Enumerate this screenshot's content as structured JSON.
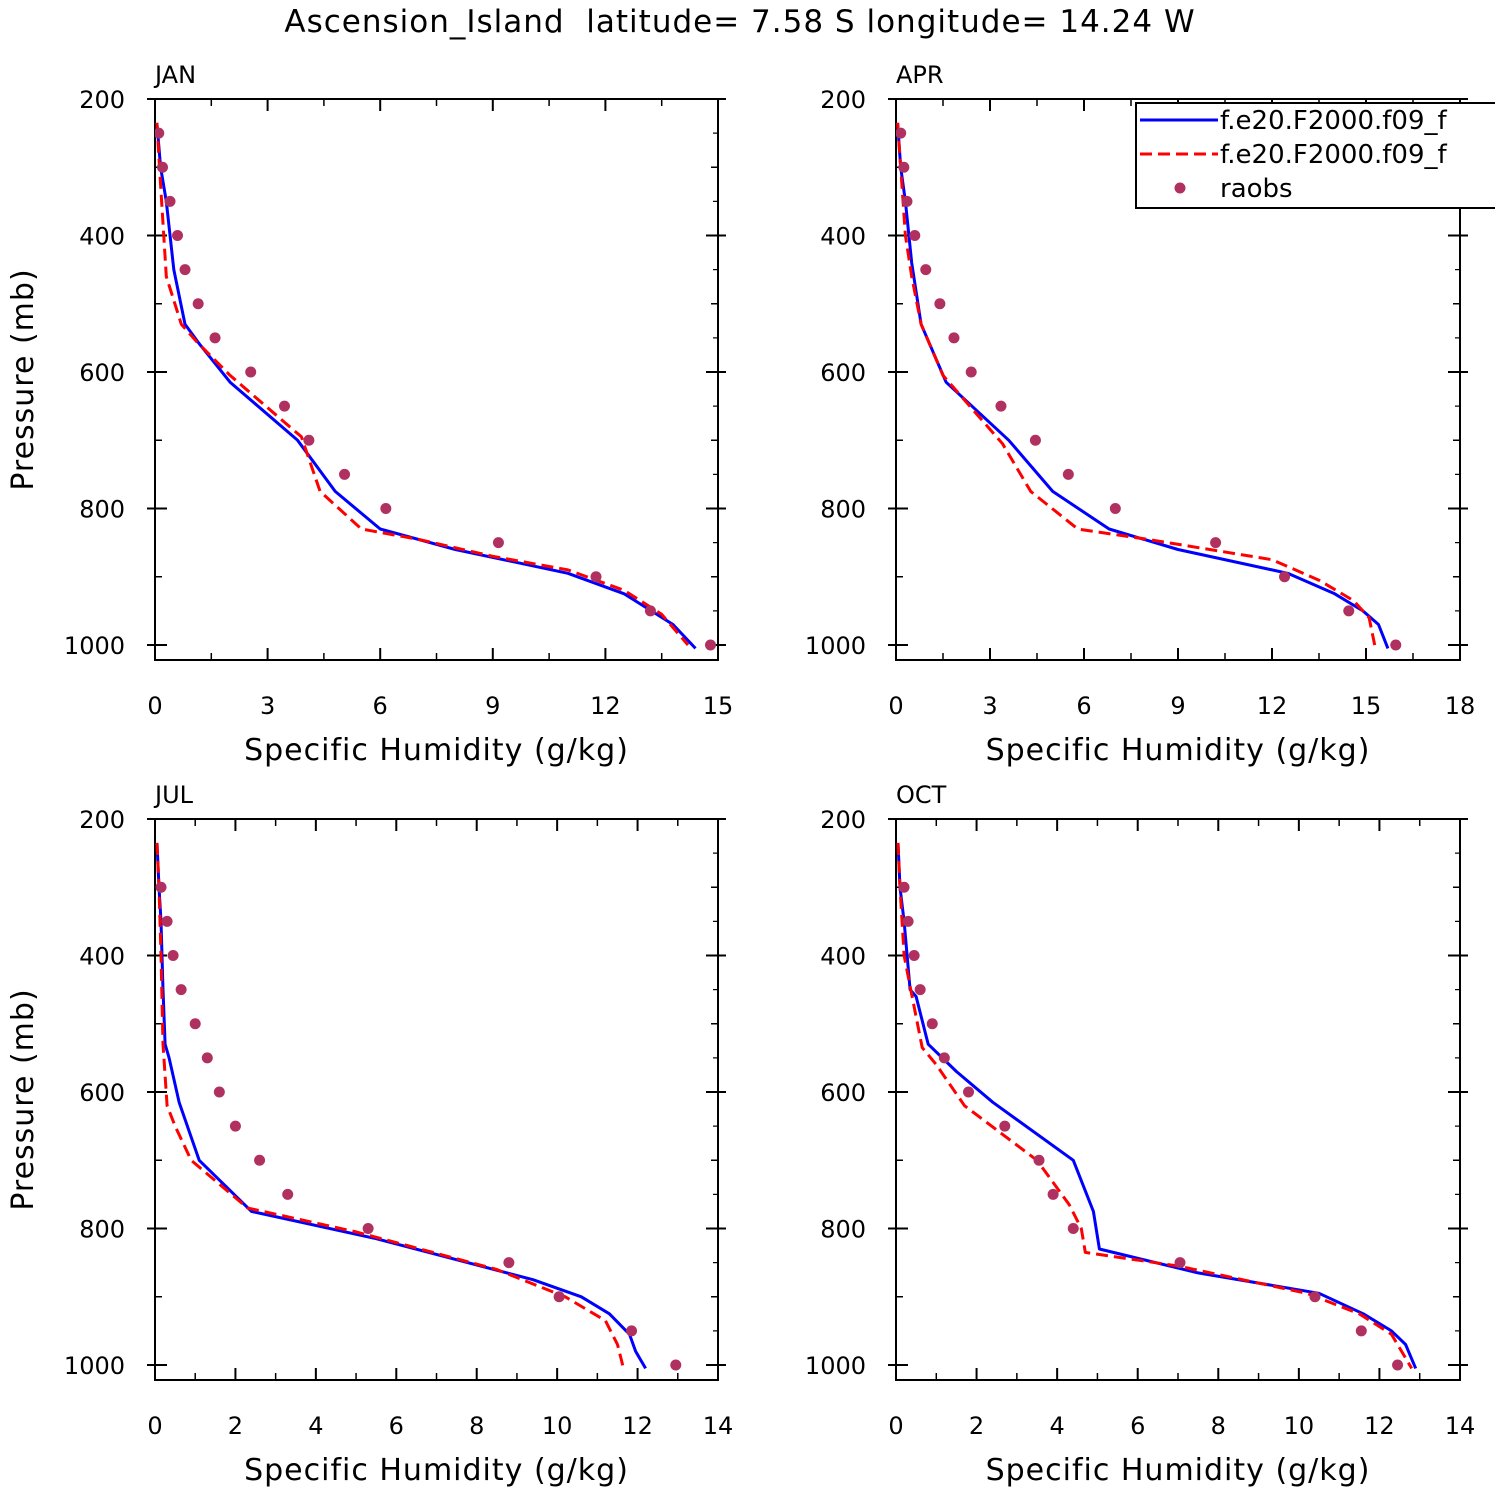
{
  "figure_title": "Ascension_Island  latitude= 7.58 S longitude= 14.24 W",
  "legend": {
    "entries": [
      {
        "label": "f.e20.F2000.f09_f",
        "style": "solid",
        "color": "#0000ff"
      },
      {
        "label": "f.e20.F2000.f09_f",
        "style": "dashed",
        "color": "#ff0000"
      },
      {
        "label": "raobs",
        "style": "marker",
        "color": "#b03060"
      }
    ]
  },
  "colors": {
    "series_solid": "#0000ff",
    "series_dashed": "#ff0000",
    "obs": "#b03060"
  },
  "chart_data": [
    {
      "type": "line",
      "title": "JAN",
      "xlabel": "Specific Humidity (g/kg)",
      "ylabel": "Pressure (mb)",
      "xlim": [
        0,
        15
      ],
      "xticks": [
        0,
        3,
        6,
        9,
        12,
        15
      ],
      "ylim": [
        1000,
        200
      ],
      "yticks": [
        200,
        400,
        600,
        800,
        1000
      ],
      "series": [
        {
          "style": "solid",
          "x": [
            0.05,
            0.15,
            0.3,
            0.5,
            0.8,
            1.2,
            2.0,
            3.8,
            4.8,
            6.0,
            8.0,
            11.0,
            12.5,
            13.8,
            14.4
          ],
          "y": [
            235,
            300,
            350,
            450,
            530,
            560,
            615,
            700,
            775,
            830,
            860,
            895,
            925,
            970,
            1005
          ]
        },
        {
          "style": "dashed",
          "x": [
            0.05,
            0.12,
            0.3,
            0.7,
            1.1,
            2.0,
            3.9,
            4.4,
            5.5,
            7.0,
            9.0,
            11.0,
            12.5,
            13.5,
            14.2
          ],
          "y": [
            235,
            300,
            460,
            530,
            555,
            605,
            695,
            775,
            830,
            845,
            870,
            890,
            920,
            955,
            1000
          ]
        },
        {
          "style": "marker",
          "x": [
            0.1,
            0.2,
            0.4,
            0.6,
            0.8,
            1.15,
            1.6,
            2.55,
            3.45,
            4.1,
            5.05,
            6.15,
            9.15,
            11.75,
            13.2,
            14.8
          ],
          "y": [
            250,
            300,
            350,
            400,
            450,
            500,
            550,
            600,
            650,
            700,
            750,
            800,
            850,
            900,
            950,
            1000
          ]
        }
      ]
    },
    {
      "type": "line",
      "title": "APR",
      "xlabel": "Specific Humidity (g/kg)",
      "ylabel": "",
      "xlim": [
        0,
        18
      ],
      "xticks": [
        0,
        3,
        6,
        9,
        12,
        15,
        18
      ],
      "ylim": [
        1000,
        200
      ],
      "yticks": [
        200,
        400,
        600,
        800,
        1000
      ],
      "series": [
        {
          "style": "solid",
          "x": [
            0.05,
            0.15,
            0.3,
            0.5,
            0.8,
            1.6,
            3.6,
            5.0,
            6.8,
            9.0,
            12.5,
            14.0,
            14.9,
            15.4,
            15.7
          ],
          "y": [
            235,
            300,
            350,
            440,
            530,
            615,
            700,
            775,
            830,
            860,
            895,
            925,
            950,
            970,
            1005
          ]
        },
        {
          "style": "dashed",
          "x": [
            0.05,
            0.15,
            0.3,
            0.5,
            0.8,
            1.5,
            3.4,
            4.3,
            5.8,
            8.0,
            12.0,
            13.5,
            14.6,
            15.1,
            15.3
          ],
          "y": [
            235,
            300,
            400,
            460,
            530,
            605,
            705,
            775,
            830,
            845,
            875,
            905,
            935,
            960,
            1005
          ]
        },
        {
          "style": "marker",
          "x": [
            0.15,
            0.25,
            0.35,
            0.6,
            0.95,
            1.4,
            1.85,
            2.4,
            3.35,
            4.45,
            5.5,
            7.0,
            10.2,
            12.4,
            14.45,
            15.95
          ],
          "y": [
            250,
            300,
            350,
            400,
            450,
            500,
            550,
            600,
            650,
            700,
            750,
            800,
            850,
            900,
            950,
            1000
          ]
        }
      ]
    },
    {
      "type": "line",
      "title": "JUL",
      "xlabel": "Specific Humidity (g/kg)",
      "ylabel": "Pressure (mb)",
      "xlim": [
        0,
        14
      ],
      "xticks": [
        0,
        2,
        4,
        6,
        8,
        10,
        12,
        14
      ],
      "ylim": [
        1000,
        200
      ],
      "yticks": [
        200,
        400,
        600,
        800,
        1000
      ],
      "series": [
        {
          "style": "solid",
          "x": [
            0.05,
            0.1,
            0.15,
            0.2,
            0.25,
            0.35,
            0.6,
            1.1,
            2.4,
            5.5,
            9.4,
            10.6,
            11.3,
            11.8,
            11.95,
            12.2
          ],
          "y": [
            235,
            300,
            350,
            450,
            530,
            550,
            615,
            700,
            775,
            815,
            875,
            900,
            925,
            955,
            980,
            1005
          ]
        },
        {
          "style": "dashed",
          "x": [
            0.05,
            0.1,
            0.15,
            0.2,
            0.3,
            0.5,
            0.9,
            2.3,
            5.0,
            8.5,
            10.2,
            11.2,
            11.5,
            11.65
          ],
          "y": [
            235,
            300,
            400,
            530,
            620,
            650,
            700,
            770,
            805,
            860,
            900,
            935,
            970,
            1005
          ]
        },
        {
          "style": "marker",
          "x": [
            0.15,
            0.3,
            0.45,
            0.65,
            1.0,
            1.3,
            1.6,
            2.0,
            2.6,
            3.3,
            5.3,
            8.8,
            10.05,
            11.85,
            12.95
          ],
          "y": [
            300,
            350,
            400,
            450,
            500,
            550,
            600,
            650,
            700,
            750,
            800,
            850,
            900,
            950,
            1000
          ]
        }
      ]
    },
    {
      "type": "line",
      "title": "OCT",
      "xlabel": "Specific Humidity (g/kg)",
      "ylabel": "",
      "xlim": [
        0,
        14
      ],
      "xticks": [
        0,
        2,
        4,
        6,
        8,
        10,
        12,
        14
      ],
      "ylim": [
        1000,
        200
      ],
      "yticks": [
        200,
        400,
        600,
        800,
        1000
      ],
      "series": [
        {
          "style": "solid",
          "x": [
            0.05,
            0.1,
            0.2,
            0.35,
            0.5,
            0.8,
            1.5,
            2.4,
            4.4,
            4.9,
            5.05,
            7.5,
            10.5,
            11.6,
            12.3,
            12.65,
            12.9
          ],
          "y": [
            235,
            300,
            350,
            450,
            460,
            530,
            570,
            615,
            700,
            775,
            830,
            865,
            895,
            925,
            950,
            970,
            1005
          ]
        },
        {
          "style": "dashed",
          "x": [
            0.05,
            0.1,
            0.2,
            0.4,
            0.65,
            1.0,
            1.7,
            3.5,
            4.3,
            4.6,
            4.7,
            7.0,
            10.2,
            11.5,
            12.3,
            12.8
          ],
          "y": [
            235,
            300,
            400,
            460,
            535,
            560,
            620,
            700,
            765,
            800,
            835,
            855,
            895,
            925,
            955,
            1005
          ]
        },
        {
          "style": "marker",
          "x": [
            0.2,
            0.3,
            0.45,
            0.6,
            0.9,
            1.2,
            1.8,
            2.7,
            3.55,
            3.9,
            4.4,
            7.05,
            10.4,
            11.55,
            12.45
          ],
          "y": [
            300,
            350,
            400,
            450,
            500,
            550,
            600,
            650,
            700,
            750,
            800,
            850,
            900,
            950,
            1000
          ]
        }
      ]
    }
  ]
}
